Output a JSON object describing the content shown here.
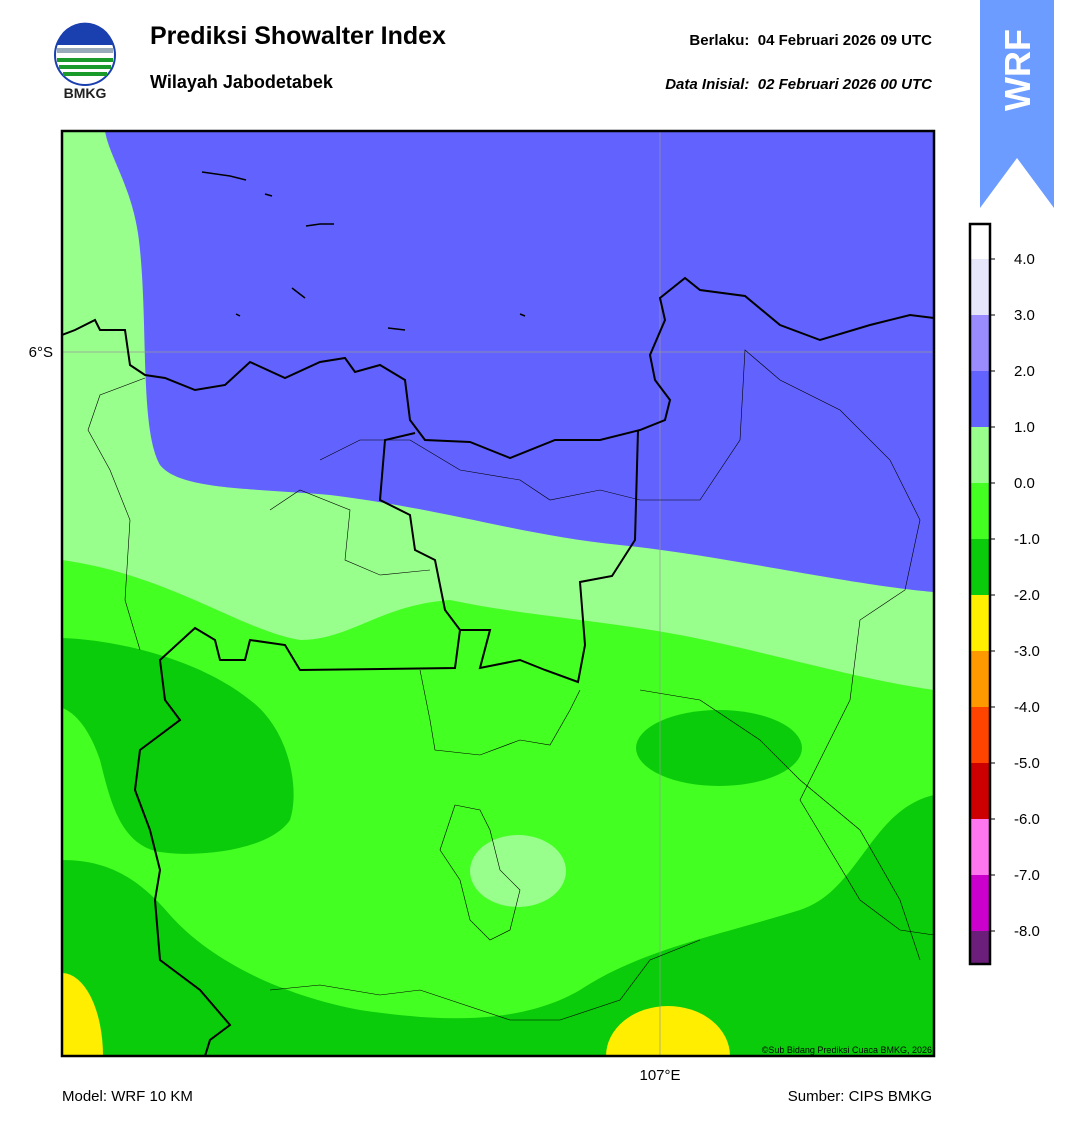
{
  "header": {
    "logo_text": "BMKG",
    "title": "Prediksi Showalter Index",
    "subtitle": "Wilayah Jabodetabek",
    "valid_time": "Berlaku:  04 Februari 2026 09 UTC",
    "initial_data": "Data Inisial:  02 Februari 2026 00 UTC",
    "badge": "WRF"
  },
  "map": {
    "lat_label": "6°S",
    "lon_label": "107°E",
    "credit": "©Sub Bidang Prediksi Cuaca BMKG, 2026"
  },
  "colorbar": {
    "labels": [
      "4.0",
      "3.0",
      "2.0",
      "1.0",
      "0.0",
      "-1.0",
      "-2.0",
      "-3.0",
      "-4.0",
      "-5.0",
      "-6.0",
      "-7.0",
      "-8.0"
    ],
    "colors": [
      "#ffffff",
      "#e6e6fa",
      "#9a8cff",
      "#6262ff",
      "#99ff8c",
      "#44ff22",
      "#0acc0a",
      "#ffee00",
      "#ff9900",
      "#ff4400",
      "#cc0000",
      "#ff77ee",
      "#cc00cc",
      "#6b1f7a"
    ]
  },
  "footer": {
    "model": "Model: WRF 10 KM",
    "source": "Sumber: CIPS BMKG"
  }
}
